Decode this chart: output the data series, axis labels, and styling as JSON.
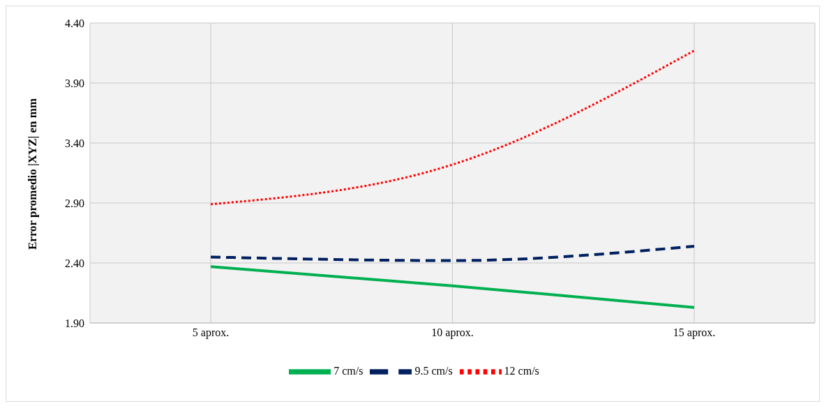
{
  "chart_data": {
    "type": "line",
    "ylabel": "Error promedio  |XYZ| en mm",
    "categories": [
      "5 aprox.",
      "10 aprox.",
      "15 aprox."
    ],
    "series": [
      {
        "name": "7 cm/s",
        "color": "#00b050",
        "values": [
          2.37,
          2.21,
          2.03
        ],
        "line_style": "solid"
      },
      {
        "name": "9.5 cm/s",
        "color": "#002060",
        "values": [
          2.45,
          2.42,
          2.54
        ],
        "line_style": "dashed"
      },
      {
        "name": "12 cm/s",
        "color": "#ff0000",
        "values": [
          2.89,
          3.22,
          4.17
        ],
        "line_style": "dotted"
      }
    ],
    "ylim": [
      1.9,
      4.4
    ],
    "yticks": [
      {
        "value": 1.9,
        "label": "1.90"
      },
      {
        "value": 2.4,
        "label": "2.40"
      },
      {
        "value": 2.9,
        "label": "2.90"
      },
      {
        "value": 3.4,
        "label": "3.40"
      },
      {
        "value": 3.9,
        "label": "3.90"
      },
      {
        "value": 4.4,
        "label": "4.40"
      }
    ],
    "grid": true,
    "legend": "bottom",
    "marker": "none"
  }
}
